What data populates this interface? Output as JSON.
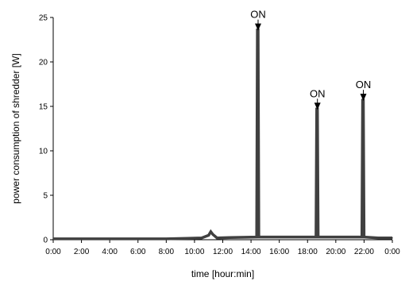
{
  "chart_data": {
    "type": "line",
    "title": "",
    "xlabel": "time [hour:min]",
    "ylabel": "power consumption of shredder [W]",
    "xlim": [
      0,
      24
    ],
    "ylim": [
      0,
      25
    ],
    "x_ticks": [
      "0:00",
      "2:00",
      "4:00",
      "6:00",
      "8:00",
      "10:00",
      "12:00",
      "14:00",
      "16:00",
      "18:00",
      "20:00",
      "22:00",
      "0:00"
    ],
    "y_ticks": [
      "0",
      "5",
      "10",
      "15",
      "20",
      "25"
    ],
    "grid": false,
    "legend": "none",
    "series_color": "#404040",
    "series": [
      {
        "x_hours": [
          0,
          2,
          4,
          6,
          8,
          9.5,
          10.5,
          11.0,
          11.15,
          11.3,
          11.6,
          12.5,
          14.4,
          14.45,
          14.5,
          14.55,
          15.5,
          18.6,
          18.65,
          18.7,
          18.75,
          20.0,
          21.85,
          21.9,
          21.95,
          22.0,
          23.0,
          24.0
        ],
        "values": [
          0.1,
          0.1,
          0.1,
          0.1,
          0.1,
          0.15,
          0.2,
          0.5,
          0.9,
          0.6,
          0.2,
          0.25,
          0.3,
          23.6,
          23.6,
          0.3,
          0.3,
          0.3,
          14.7,
          14.7,
          0.3,
          0.3,
          0.3,
          15.7,
          15.7,
          0.3,
          0.2,
          0.2
        ]
      }
    ],
    "annotations": [
      {
        "text": "ON",
        "x_hours": 14.5,
        "y": 23.6
      },
      {
        "text": "ON",
        "x_hours": 18.7,
        "y": 14.7
      },
      {
        "text": "ON",
        "x_hours": 21.95,
        "y": 15.7
      }
    ]
  }
}
